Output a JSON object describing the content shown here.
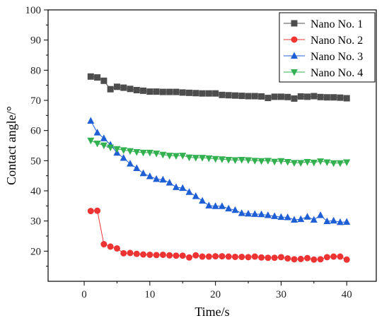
{
  "chart_data": {
    "type": "line",
    "title": "",
    "xlabel": "Time/s",
    "ylabel": "Contact angle/°",
    "xlim": [
      -5.5,
      44.5
    ],
    "ylim": [
      10,
      100
    ],
    "xticks": [
      0,
      10,
      20,
      30,
      40
    ],
    "yticks": [
      20,
      30,
      40,
      50,
      60,
      70,
      80,
      90,
      100
    ],
    "grid": false,
    "legend_position": "top-right",
    "x": [
      1,
      2,
      3,
      4,
      5,
      6,
      7,
      8,
      9,
      10,
      11,
      12,
      13,
      14,
      15,
      16,
      17,
      18,
      19,
      20,
      21,
      22,
      23,
      24,
      25,
      26,
      27,
      28,
      29,
      30,
      31,
      32,
      33,
      34,
      35,
      36,
      37,
      38,
      39,
      40
    ],
    "series": [
      {
        "name": "Nano No. 1",
        "color": "#4d4d4d",
        "marker": "square",
        "values": [
          77.9,
          77.6,
          76.5,
          73.7,
          74.5,
          74.2,
          73.8,
          73.4,
          73.2,
          72.9,
          72.9,
          72.8,
          72.8,
          72.8,
          72.6,
          72.5,
          72.4,
          72.3,
          72.3,
          72.3,
          71.8,
          71.7,
          71.6,
          71.5,
          71.4,
          71.4,
          71.3,
          70.8,
          71.2,
          71.2,
          71.1,
          70.6,
          71.3,
          71.2,
          71.4,
          71.1,
          71.0,
          71.0,
          70.9,
          70.7
        ]
      },
      {
        "name": "Nano No. 2",
        "color": "#ee3333",
        "marker": "circle",
        "values": [
          33.3,
          33.4,
          22.3,
          21.5,
          20.9,
          19.3,
          19.4,
          19.1,
          18.9,
          18.8,
          18.7,
          18.8,
          18.6,
          18.5,
          18.5,
          17.9,
          18.6,
          18.2,
          18.2,
          18.3,
          18.3,
          18.2,
          18.1,
          18.1,
          18.0,
          18.2,
          17.9,
          17.8,
          17.8,
          18.0,
          17.6,
          17.3,
          17.4,
          17.7,
          17.2,
          17.3,
          18.0,
          18.2,
          18.2,
          17.2
        ]
      },
      {
        "name": "Nano No. 3",
        "color": "#1f5fd6",
        "marker": "triangle-up",
        "values": [
          63.2,
          59.3,
          57.4,
          55.3,
          52.6,
          50.9,
          49.0,
          47.5,
          45.8,
          44.8,
          43.9,
          43.7,
          42.7,
          41.2,
          40.9,
          39.6,
          38.2,
          36.7,
          35.1,
          34.9,
          34.9,
          34.1,
          33.6,
          32.6,
          32.4,
          32.3,
          32.2,
          31.9,
          31.6,
          31.3,
          31.2,
          30.4,
          30.6,
          31.4,
          30.4,
          31.9,
          29.9,
          30.1,
          29.6,
          29.7
        ]
      },
      {
        "name": "Nano No. 4",
        "color": "#33b050",
        "marker": "triangle-down",
        "values": [
          56.7,
          55.7,
          55.1,
          54.4,
          53.9,
          53.5,
          53.2,
          52.9,
          52.7,
          52.7,
          52.4,
          52.0,
          51.7,
          51.6,
          51.7,
          51.1,
          51.0,
          51.0,
          50.8,
          50.6,
          50.5,
          50.3,
          50.2,
          50.3,
          50.2,
          50.0,
          49.9,
          50.0,
          49.7,
          49.9,
          49.6,
          49.3,
          49.3,
          49.6,
          49.4,
          49.8,
          49.5,
          49.2,
          49.2,
          49.5
        ]
      }
    ]
  }
}
